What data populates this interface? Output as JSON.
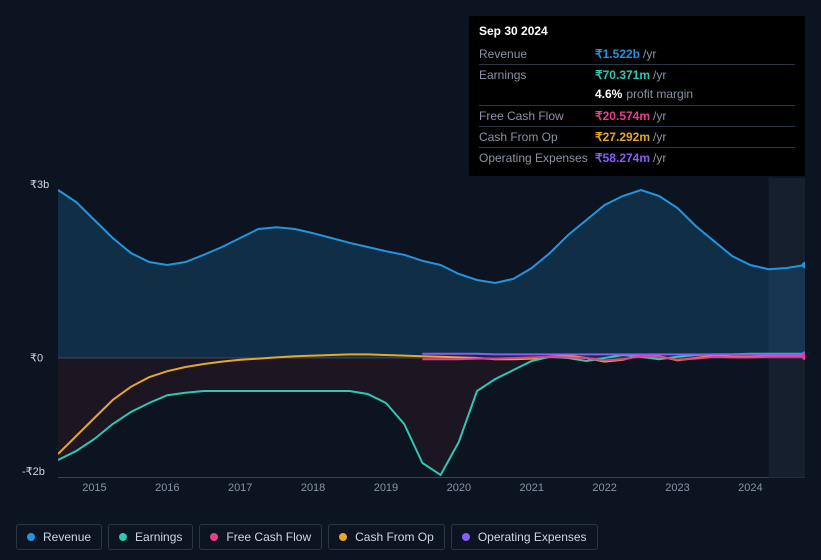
{
  "tooltip": {
    "date": "Sep 30 2024",
    "rows": [
      {
        "label": "Revenue",
        "value": "₹1.522b",
        "color": "#2394df",
        "suffix": "/yr"
      },
      {
        "label": "Earnings",
        "value": "₹70.371m",
        "color": "#2dc9b3",
        "suffix": "/yr"
      },
      {
        "label": "_profit_margin",
        "pm_val": "4.6%",
        "pm_txt": "profit margin"
      },
      {
        "label": "Free Cash Flow",
        "value": "₹20.574m",
        "color": "#e83e8c",
        "suffix": "/yr"
      },
      {
        "label": "Cash From Op",
        "value": "₹27.292m",
        "color": "#e6a827",
        "suffix": "/yr"
      },
      {
        "label": "Operating Expenses",
        "value": "₹58.274m",
        "color": "#8a5cf6",
        "suffix": "/yr"
      }
    ]
  },
  "chart": {
    "type": "line-area",
    "background_color": "#0d1421",
    "forecast_start_idx": 39,
    "ylim": [
      -2,
      3
    ],
    "y_ticks": [
      {
        "v": 3,
        "label": "₹3b"
      },
      {
        "v": 0,
        "label": "₹0"
      },
      {
        "v": -2,
        "label": "-₹2b"
      }
    ],
    "x_years": [
      "2015",
      "2016",
      "2017",
      "2018",
      "2019",
      "2020",
      "2021",
      "2022",
      "2023",
      "2024"
    ],
    "x_year_idx": [
      2,
      6,
      10,
      14,
      18,
      22,
      26,
      30,
      34,
      38
    ],
    "n_points": 42,
    "series": {
      "revenue": {
        "label": "Revenue",
        "color": "#2394df",
        "fill_from_zero": true,
        "fill_opacity": 0.2,
        "data": [
          2.8,
          2.6,
          2.3,
          2.0,
          1.75,
          1.6,
          1.55,
          1.6,
          1.72,
          1.85,
          2.0,
          2.15,
          2.18,
          2.15,
          2.08,
          2.0,
          1.92,
          1.85,
          1.78,
          1.72,
          1.62,
          1.55,
          1.4,
          1.3,
          1.25,
          1.32,
          1.5,
          1.75,
          2.05,
          2.3,
          2.55,
          2.7,
          2.8,
          2.7,
          2.5,
          2.2,
          1.95,
          1.7,
          1.55,
          1.48,
          1.5,
          1.55
        ]
      },
      "earnings": {
        "label": "Earnings",
        "color": "#2dc9b3",
        "fill_from_zero": true,
        "fill_opacity": 0.15,
        "fill_color": "#6b1f28",
        "data": [
          -1.7,
          -1.55,
          -1.35,
          -1.1,
          -0.9,
          -0.75,
          -0.62,
          -0.58,
          -0.55,
          -0.55,
          -0.55,
          -0.55,
          -0.55,
          -0.55,
          -0.55,
          -0.55,
          -0.55,
          -0.6,
          -0.75,
          -1.1,
          -1.75,
          -1.95,
          -1.4,
          -0.55,
          -0.35,
          -0.2,
          -0.05,
          0.02,
          0.0,
          -0.05,
          0.0,
          0.05,
          0.02,
          -0.02,
          0.02,
          0.05,
          0.06,
          0.06,
          0.07,
          0.07,
          0.07,
          0.07
        ]
      },
      "cash_op": {
        "label": "Cash From Op",
        "color": "#e6a827",
        "fill_from_zero": false,
        "data": [
          -1.6,
          -1.3,
          -1.0,
          -0.7,
          -0.48,
          -0.32,
          -0.22,
          -0.15,
          -0.1,
          -0.06,
          -0.03,
          -0.01,
          0.01,
          0.03,
          0.04,
          0.05,
          0.06,
          0.06,
          0.05,
          0.04,
          0.03,
          0.02,
          0.01,
          0.0,
          -0.02,
          -0.02,
          -0.01,
          0.02,
          0.04,
          0.0,
          -0.06,
          -0.03,
          0.05,
          0.03,
          -0.04,
          0.0,
          0.04,
          0.02,
          0.02,
          0.03,
          0.03,
          0.03
        ]
      },
      "fcf": {
        "label": "Free Cash Flow",
        "color": "#e83e8c",
        "fill_from_zero": false,
        "start_idx": 20,
        "data": [
          -0.02,
          -0.02,
          -0.02,
          -0.01,
          -0.01,
          0.0,
          0.01,
          0.02,
          0.01,
          0.0,
          -0.04,
          -0.02,
          0.03,
          0.02,
          -0.03,
          -0.01,
          0.02,
          0.01,
          0.01,
          0.02,
          0.02,
          0.02
        ]
      },
      "opex": {
        "label": "Operating Expenses",
        "color": "#8a5cf6",
        "fill_from_zero": false,
        "start_idx": 20,
        "data": [
          0.07,
          0.07,
          0.07,
          0.07,
          0.06,
          0.06,
          0.06,
          0.06,
          0.06,
          0.06,
          0.06,
          0.06,
          0.06,
          0.06,
          0.06,
          0.06,
          0.06,
          0.06,
          0.06,
          0.06,
          0.06,
          0.06
        ]
      }
    },
    "legend_order": [
      "revenue",
      "earnings",
      "fcf",
      "cash_op",
      "opex"
    ],
    "line_width": 2
  }
}
